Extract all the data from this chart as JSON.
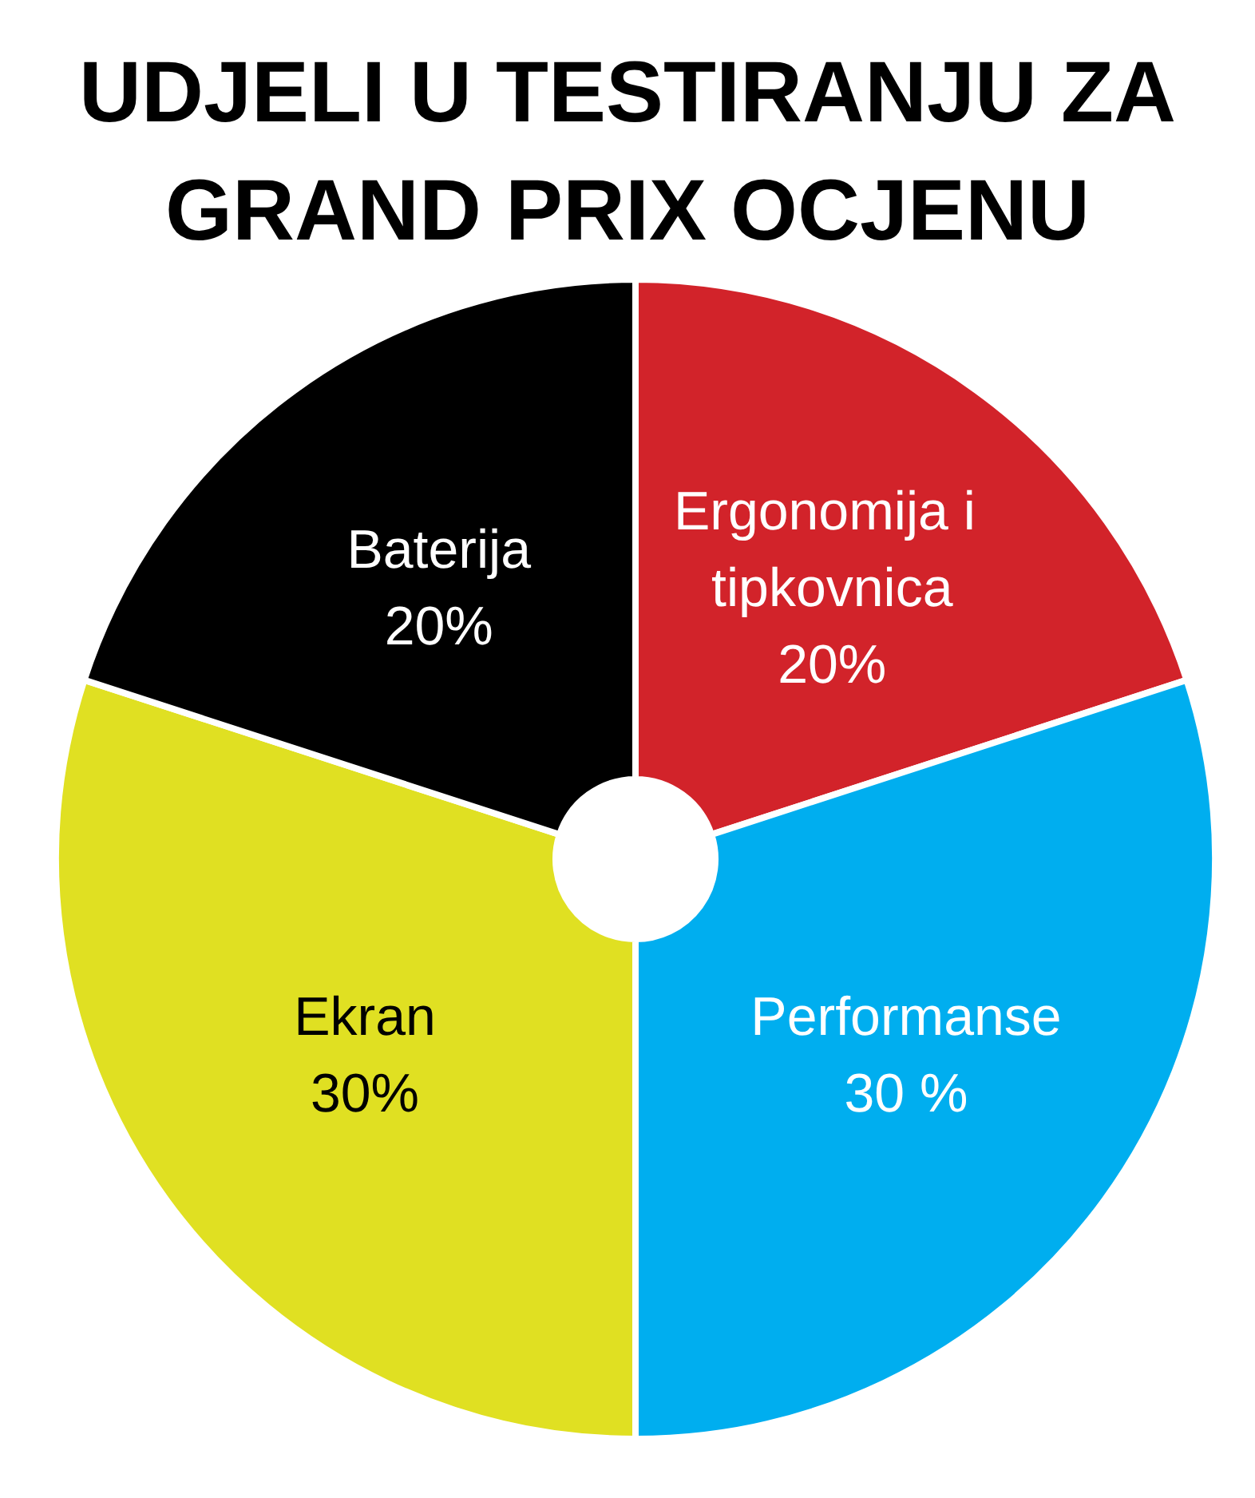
{
  "chart_data": {
    "type": "donut",
    "title": "UDJELI U TESTIRANJU ZA GRAND PRIX OCJENU",
    "categories": [
      "Ergonomija i tipkovnica",
      "Performanse",
      "Ekran",
      "Baterija"
    ],
    "values": [
      20,
      30,
      30,
      20
    ],
    "colors": [
      "#d2232a",
      "#00aeef",
      "#e0e022",
      "#000000"
    ],
    "value_labels": [
      "20%",
      "30 %",
      "30%",
      "20%"
    ],
    "legend": false
  }
}
